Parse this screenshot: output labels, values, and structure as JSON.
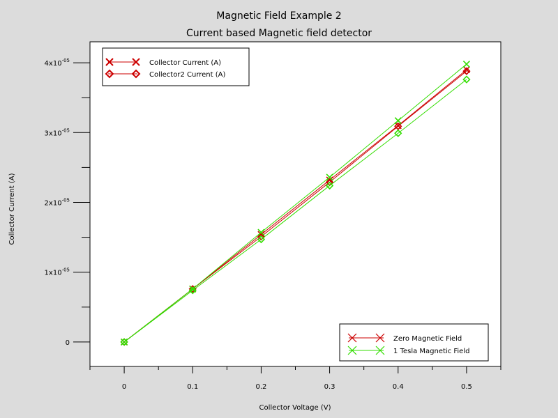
{
  "chart_data": {
    "type": "line",
    "title": "Magnetic Field Example 2",
    "subtitle": "Current based Magnetic field detector",
    "xlabel": "Collector Voltage (V)",
    "ylabel": "Collector Current (A)",
    "xlim": [
      -0.05,
      0.55
    ],
    "ylim": [
      -3.5e-06,
      4.3e-05
    ],
    "x_ticks": [
      0,
      0.1,
      0.2,
      0.3,
      0.4,
      0.5
    ],
    "x_tick_labels": [
      "0",
      "0.1",
      "0.2",
      "0.3",
      "0.4",
      "0.5"
    ],
    "y_ticks": [
      0,
      1e-05,
      2e-05,
      3e-05,
      4e-05
    ],
    "y_tick_labels": [
      {
        "base": "0",
        "exp": ""
      },
      {
        "base": "1x10",
        "exp": "-05"
      },
      {
        "base": "2x10",
        "exp": "-05"
      },
      {
        "base": "3x10",
        "exp": "-05"
      },
      {
        "base": "4x10",
        "exp": "-05"
      }
    ],
    "x": [
      0,
      0.1,
      0.2,
      0.3,
      0.4,
      0.5
    ],
    "series": [
      {
        "name": "Zero Magnetic Field",
        "quantity": "Collector Current (A)",
        "color": "#cc0000",
        "marker": "x",
        "values": [
          0,
          7.6e-06,
          1.54e-05,
          2.32e-05,
          3.1e-05,
          3.9e-05
        ]
      },
      {
        "name": "Zero Magnetic Field",
        "quantity": "Collector2 Current (A)",
        "color": "#cc0000",
        "marker": "diamond",
        "values": [
          0,
          7.6e-06,
          1.51e-05,
          2.29e-05,
          3.09e-05,
          3.88e-05
        ]
      },
      {
        "name": "1 Tesla Magnetic Field",
        "quantity": "Collector Current (A)",
        "color": "#33dd00",
        "marker": "x",
        "values": [
          0,
          7.6e-06,
          1.57e-05,
          2.36e-05,
          3.17e-05,
          3.98e-05
        ]
      },
      {
        "name": "1 Tesla Magnetic Field",
        "quantity": "Collector2 Current (A)",
        "color": "#33dd00",
        "marker": "diamond",
        "values": [
          0,
          7.4e-06,
          1.47e-05,
          2.24e-05,
          2.99e-05,
          3.76e-05
        ]
      }
    ],
    "legend_markers": {
      "position": "top-left",
      "entries": [
        {
          "label": "Collector Current (A)",
          "marker": "x",
          "color": "#cc0000"
        },
        {
          "label": "Collector2 Current (A)",
          "marker": "diamond",
          "color": "#cc0000"
        }
      ]
    },
    "legend_colors": {
      "position": "bottom-right",
      "entries": [
        {
          "label": "Zero Magnetic Field",
          "marker": "x",
          "color": "#cc0000"
        },
        {
          "label": "1 Tesla Magnetic Field",
          "marker": "x",
          "color": "#33dd00"
        }
      ]
    },
    "grid": false
  }
}
